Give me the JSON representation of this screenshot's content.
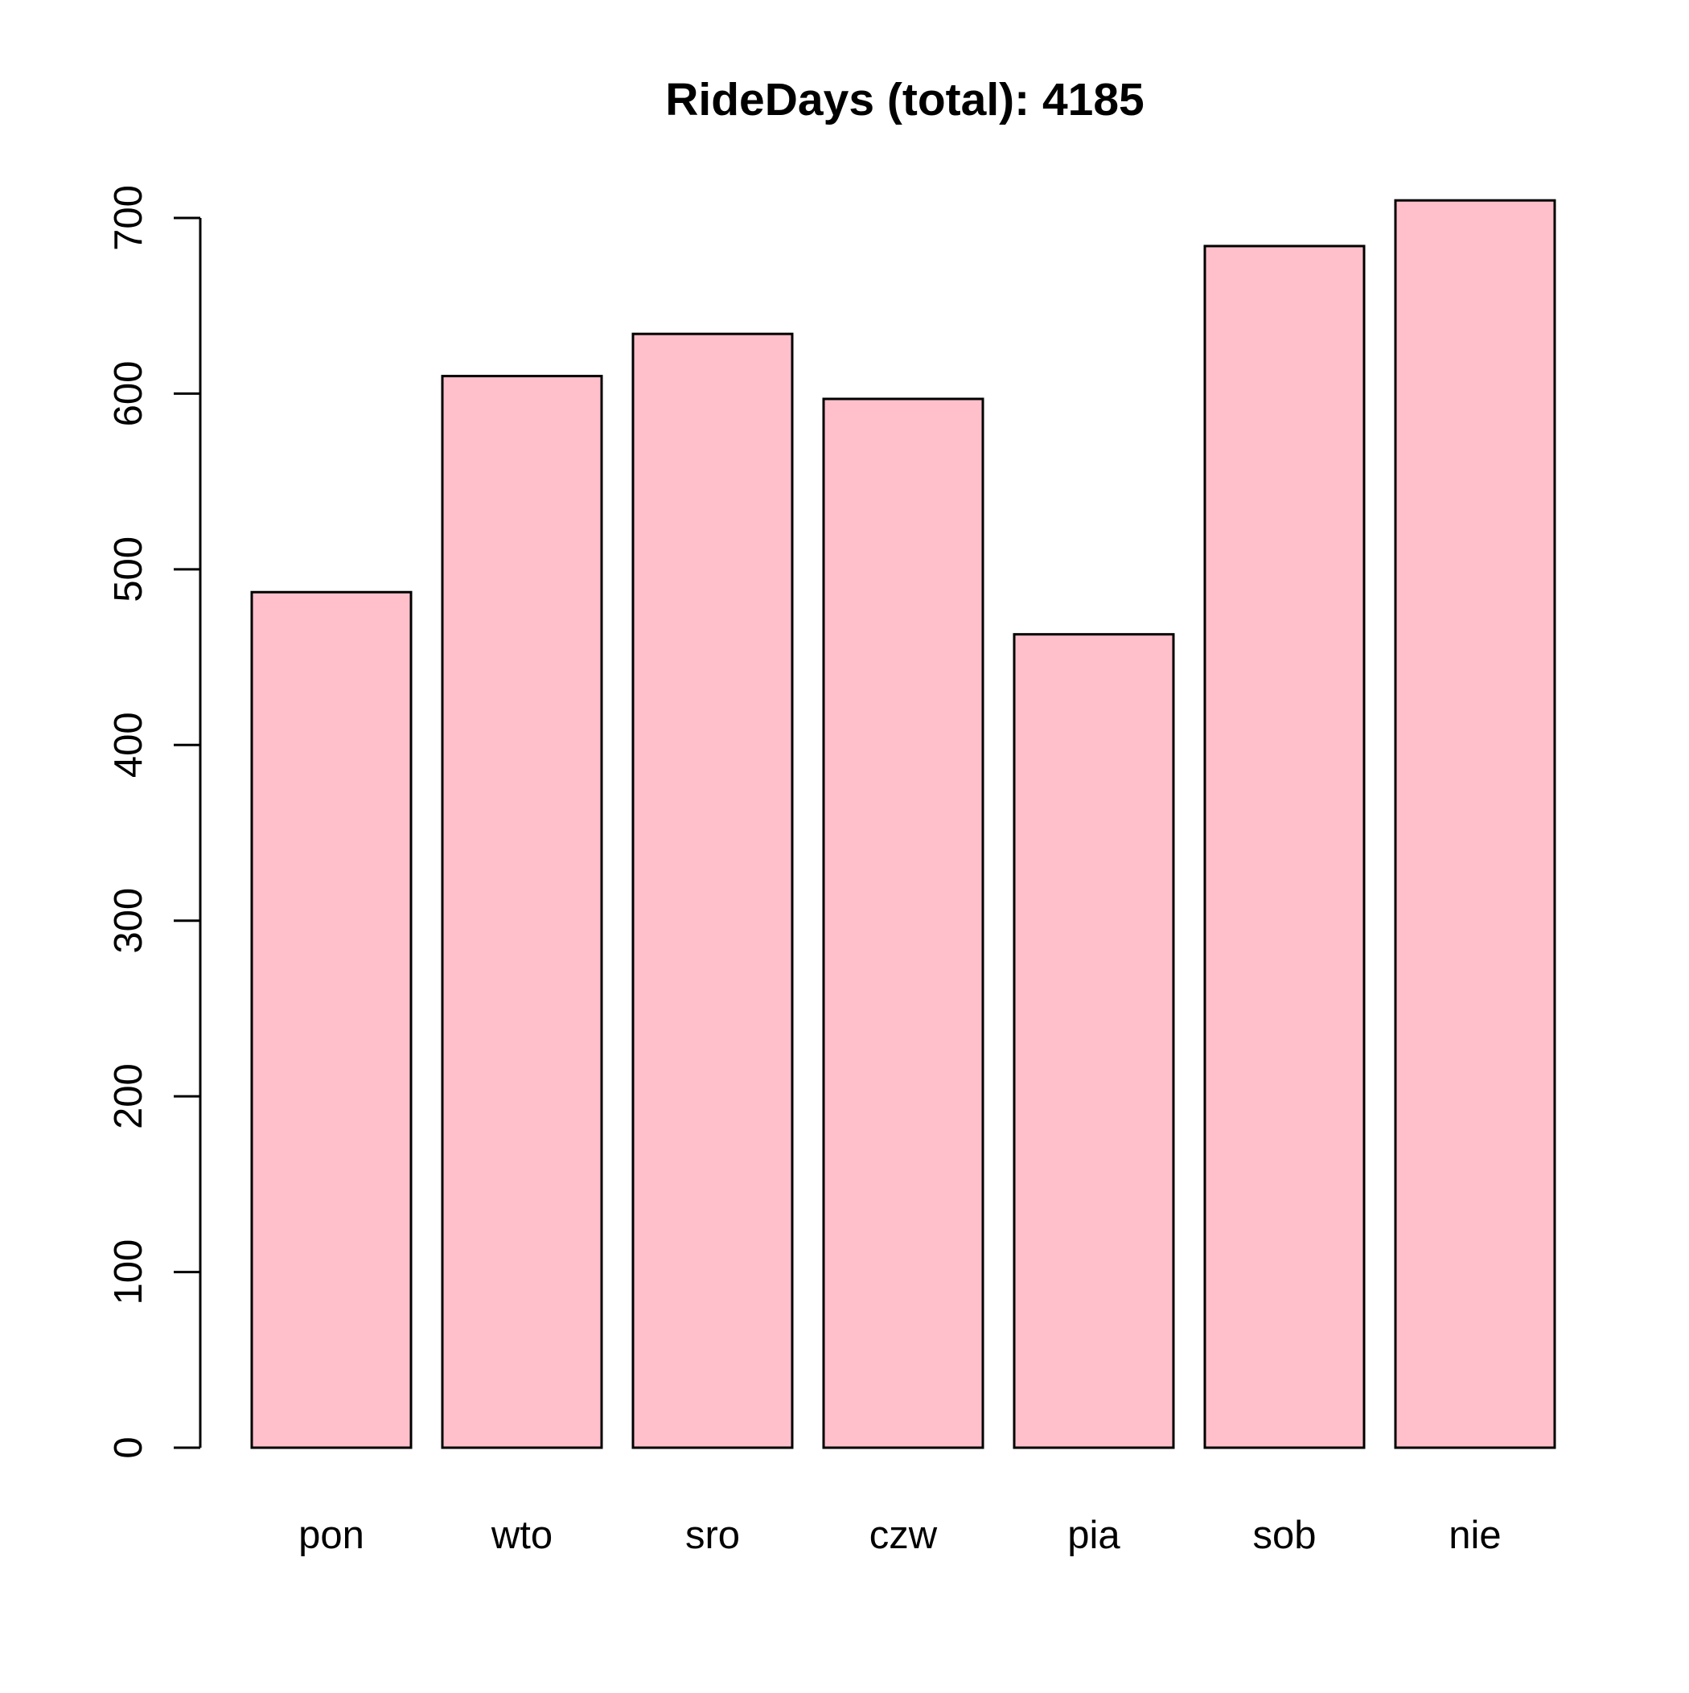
{
  "chart_data": {
    "type": "bar",
    "title": "RideDays (total): 4185",
    "xlabel": "",
    "ylabel": "",
    "categories": [
      "pon",
      "wto",
      "sro",
      "czw",
      "pia",
      "sob",
      "nie"
    ],
    "values": [
      487,
      610,
      634,
      597,
      463,
      684,
      710
    ],
    "ylim": [
      0,
      700
    ],
    "yticks": [
      "0",
      "100",
      "200",
      "300",
      "400",
      "500",
      "600",
      "700"
    ],
    "grid": false,
    "legend": "none",
    "colors": {
      "bar_fill": "#FFC0CB",
      "bar_stroke": "#000000",
      "axis": "#000000"
    }
  }
}
